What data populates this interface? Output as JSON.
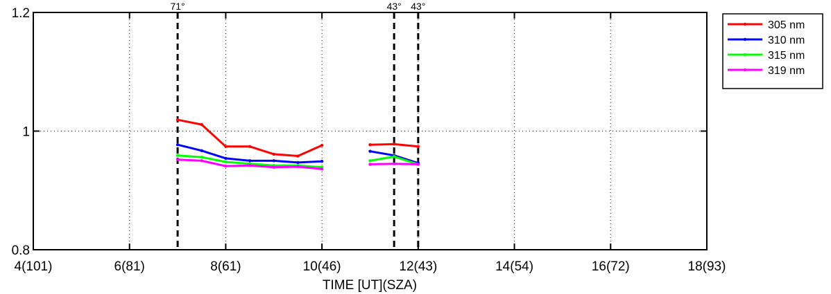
{
  "chart_data": {
    "type": "line",
    "title": "",
    "xlabel": "TIME [UT](SZA)",
    "ylabel": "",
    "xlim": [
      4,
      18
    ],
    "ylim": [
      0.8,
      1.2
    ],
    "x_ticks": [
      {
        "value": 4,
        "label": "4(101)"
      },
      {
        "value": 6,
        "label": "6(81)"
      },
      {
        "value": 8,
        "label": "8(61)"
      },
      {
        "value": 10,
        "label": "10(46)"
      },
      {
        "value": 12,
        "label": "12(43)"
      },
      {
        "value": 14,
        "label": "14(54)"
      },
      {
        "value": 16,
        "label": "16(72)"
      },
      {
        "value": 18,
        "label": "18(93)"
      }
    ],
    "y_ticks": [
      {
        "value": 0.8,
        "label": "0.8"
      },
      {
        "value": 1.0,
        "label": "1"
      },
      {
        "value": 1.2,
        "label": "1.2"
      }
    ],
    "grid": "dotted",
    "legend_position": "outside-top-right",
    "vertical_markers": [
      {
        "x": 7.0,
        "label": "71°"
      },
      {
        "x": 11.5,
        "label": "43°"
      },
      {
        "x": 12.0,
        "label": "43°"
      }
    ],
    "series": [
      {
        "name": "305 nm",
        "color": "#ff0000",
        "segments": [
          {
            "x": [
              7.0,
              7.5,
              8.0,
              8.5,
              9.0,
              9.5,
              10.0
            ],
            "y": [
              1.019,
              1.011,
              0.974,
              0.974,
              0.961,
              0.958,
              0.976
            ]
          },
          {
            "x": [
              11.0,
              11.5,
              12.0
            ],
            "y": [
              0.977,
              0.978,
              0.974
            ]
          }
        ]
      },
      {
        "name": "310 nm",
        "color": "#0000ff",
        "segments": [
          {
            "x": [
              7.0,
              7.5,
              8.0,
              8.5,
              9.0,
              9.5,
              10.0
            ],
            "y": [
              0.977,
              0.967,
              0.954,
              0.95,
              0.95,
              0.947,
              0.949
            ]
          },
          {
            "x": [
              11.0,
              11.5,
              12.0
            ],
            "y": [
              0.966,
              0.959,
              0.946
            ]
          }
        ]
      },
      {
        "name": "315 nm",
        "color": "#00ff00",
        "segments": [
          {
            "x": [
              7.0,
              7.5,
              8.0,
              8.5,
              9.0,
              9.5,
              10.0
            ],
            "y": [
              0.959,
              0.956,
              0.948,
              0.945,
              0.942,
              0.942,
              0.939
            ]
          },
          {
            "x": [
              11.0,
              11.5,
              12.0
            ],
            "y": [
              0.95,
              0.957,
              0.944
            ]
          }
        ]
      },
      {
        "name": "319 nm",
        "color": "#ff00ff",
        "segments": [
          {
            "x": [
              7.0,
              7.5,
              8.0,
              8.5,
              9.0,
              9.5,
              10.0
            ],
            "y": [
              0.952,
              0.95,
              0.941,
              0.942,
              0.939,
              0.94,
              0.936
            ]
          },
          {
            "x": [
              11.0,
              11.5,
              12.0
            ],
            "y": [
              0.944,
              0.945,
              0.944
            ]
          }
        ]
      }
    ]
  }
}
